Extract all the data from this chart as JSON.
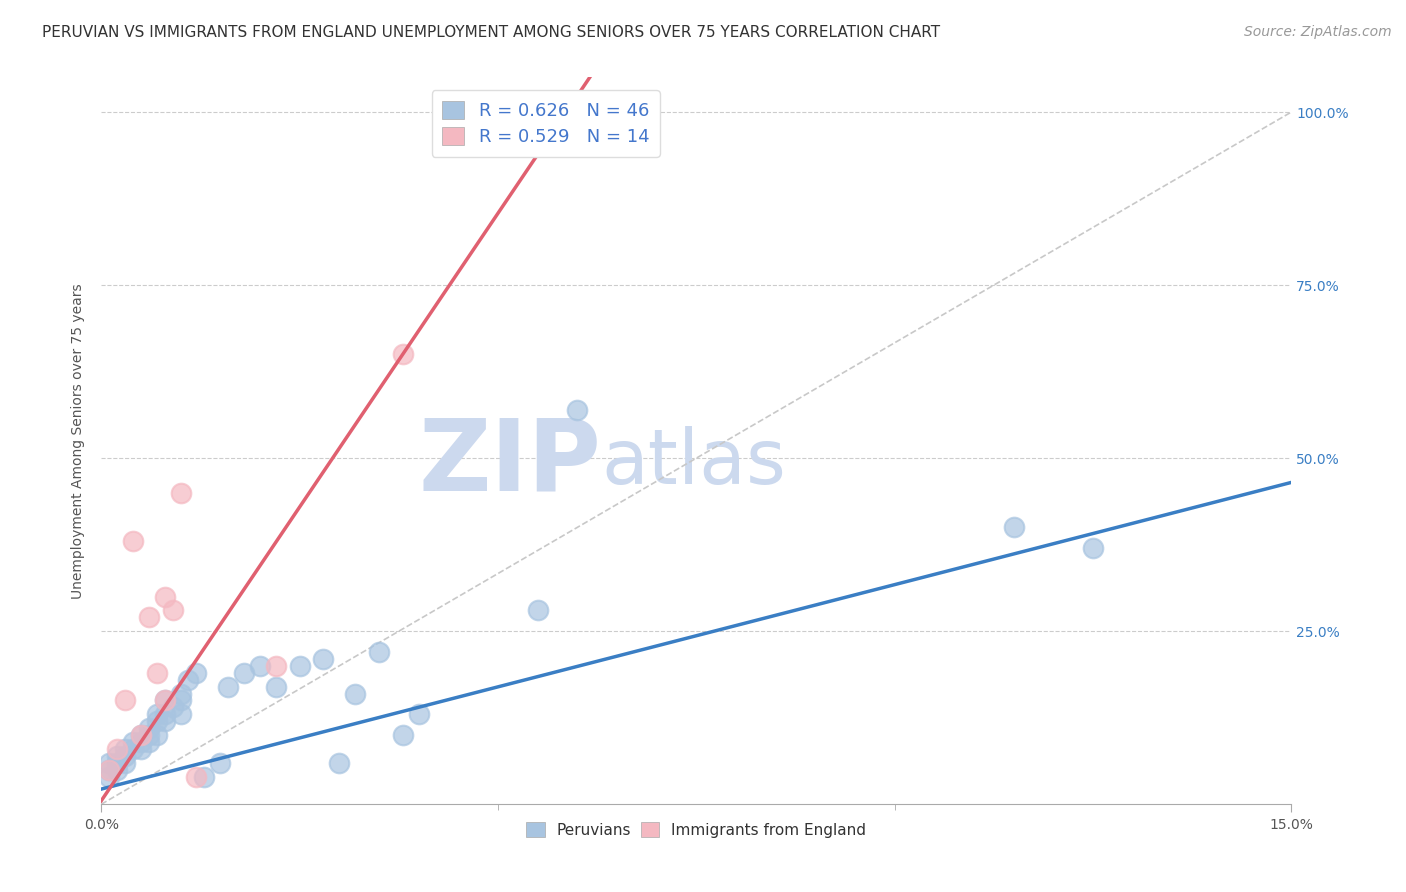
{
  "title": "PERUVIAN VS IMMIGRANTS FROM ENGLAND UNEMPLOYMENT AMONG SENIORS OVER 75 YEARS CORRELATION CHART",
  "source": "Source: ZipAtlas.com",
  "ylabel": "Unemployment Among Seniors over 75 years",
  "xmin": 0.0,
  "xmax": 0.15,
  "ymin": 0.0,
  "ymax": 1.05,
  "peruvian_color": "#a8c4e0",
  "england_color": "#f4b8c1",
  "peruvian_line_color": "#3a7ec4",
  "england_line_color": "#e06070",
  "diagonal_color": "#c8c8c8",
  "R_peruvian": 0.626,
  "N_peruvian": 46,
  "R_england": 0.529,
  "N_england": 14,
  "legend_color": "#4477cc",
  "watermark_zip": "ZIP",
  "watermark_atlas": "atlas",
  "watermark_color": "#ccd9ee",
  "peruvian_x": [
    0.001,
    0.001,
    0.001,
    0.002,
    0.002,
    0.002,
    0.003,
    0.003,
    0.003,
    0.004,
    0.004,
    0.005,
    0.005,
    0.005,
    0.006,
    0.006,
    0.006,
    0.007,
    0.007,
    0.007,
    0.008,
    0.008,
    0.008,
    0.009,
    0.01,
    0.01,
    0.01,
    0.011,
    0.012,
    0.013,
    0.015,
    0.016,
    0.018,
    0.02,
    0.022,
    0.025,
    0.028,
    0.03,
    0.032,
    0.035,
    0.038,
    0.04,
    0.055,
    0.06,
    0.115,
    0.125
  ],
  "peruvian_y": [
    0.04,
    0.05,
    0.06,
    0.05,
    0.06,
    0.07,
    0.06,
    0.07,
    0.08,
    0.08,
    0.09,
    0.08,
    0.09,
    0.1,
    0.09,
    0.1,
    0.11,
    0.1,
    0.12,
    0.13,
    0.12,
    0.13,
    0.15,
    0.14,
    0.13,
    0.15,
    0.16,
    0.18,
    0.19,
    0.04,
    0.06,
    0.17,
    0.19,
    0.2,
    0.17,
    0.2,
    0.21,
    0.06,
    0.16,
    0.22,
    0.1,
    0.13,
    0.28,
    0.57,
    0.4,
    0.37
  ],
  "england_x": [
    0.001,
    0.002,
    0.003,
    0.004,
    0.005,
    0.006,
    0.007,
    0.008,
    0.008,
    0.009,
    0.01,
    0.012,
    0.022,
    0.038
  ],
  "england_y": [
    0.05,
    0.08,
    0.15,
    0.38,
    0.1,
    0.27,
    0.19,
    0.15,
    0.3,
    0.28,
    0.45,
    0.04,
    0.2,
    0.65
  ],
  "peruvian_trend_x0": 0.0,
  "peruvian_trend_y0": 0.022,
  "peruvian_trend_x1": 0.15,
  "peruvian_trend_y1": 0.465,
  "england_trend_x0": 0.0,
  "england_trend_y0": 0.005,
  "england_trend_x1": 0.038,
  "england_trend_y1": 0.65,
  "title_fontsize": 11,
  "axis_label_fontsize": 10,
  "tick_fontsize": 10,
  "legend_fontsize": 13,
  "source_fontsize": 10
}
